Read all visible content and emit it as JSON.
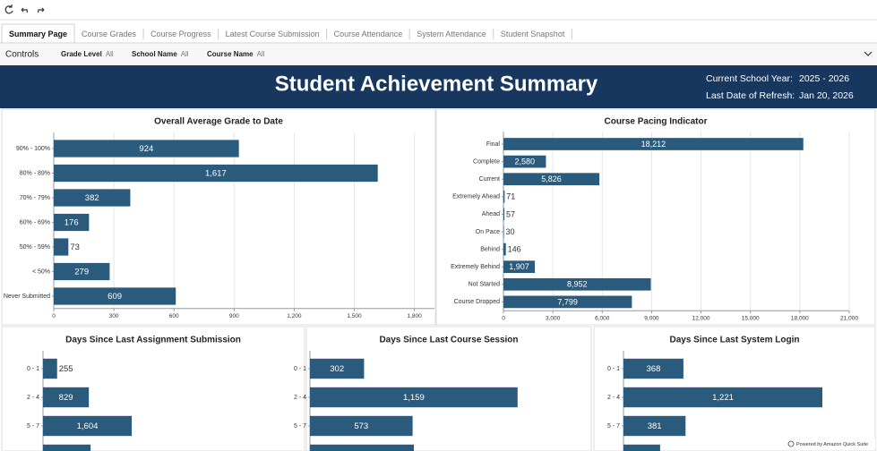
{
  "tabs": [
    "Summary Page",
    "Course Grades",
    "Course Progress",
    "Latest Course Submission",
    "Course Attendance",
    "System Attendance",
    "Student Snapshot"
  ],
  "controls": {
    "title": "Controls",
    "filters": [
      {
        "label": "Grade Level",
        "value": "All"
      },
      {
        "label": "School Name",
        "value": "All"
      },
      {
        "label": "Course Name",
        "value": "All"
      }
    ]
  },
  "header": {
    "title": "Student Achievement Summary",
    "info": [
      {
        "label": "Current School Year:",
        "value": "2025 - 2026"
      },
      {
        "label": "Last Date of Refresh:",
        "value": "Jan 20, 2026"
      }
    ]
  },
  "chart_data": [
    {
      "type": "bar",
      "orientation": "horizontal",
      "title": "Overall Average Grade to Date",
      "categories": [
        "90% - 100%",
        "80% - 89%",
        "70% - 79%",
        "60% - 69%",
        "50% - 59%",
        "< 50%",
        "Never Submitted"
      ],
      "values": [
        924,
        1617,
        382,
        176,
        73,
        279,
        609
      ],
      "value_labels": [
        "924",
        "1,617",
        "382",
        "176",
        "73",
        "279",
        "609"
      ],
      "color": "#2b5b7c",
      "xlim": [
        0,
        1900
      ],
      "xticks": [
        0,
        300,
        600,
        900,
        {
          "value": 1200,
          "label": "1,200"
        },
        {
          "value": 1500,
          "label": "1,500"
        },
        {
          "value": 1800,
          "label": "1,800"
        }
      ],
      "grid": true
    },
    {
      "type": "bar",
      "orientation": "horizontal",
      "title": "Course Pacing Indicator",
      "categories": [
        "Final",
        "Complete",
        "Current",
        "Extremely Ahead",
        "Ahead",
        "On Pace",
        "Behind",
        "Extremely Behind",
        "Not Started",
        "Course Dropped"
      ],
      "values": [
        18212,
        2580,
        5826,
        71,
        57,
        30,
        146,
        1907,
        8952,
        7799
      ],
      "value_labels": [
        "18,212",
        "2,580",
        "5,826",
        "71",
        "57",
        "30",
        "146",
        "1,907",
        "8,952",
        "7,799"
      ],
      "color": "#2b5b7c",
      "xlim": [
        0,
        21000
      ],
      "xticks": [
        0,
        {
          "value": 3000,
          "label": "3,000"
        },
        {
          "value": 6000,
          "label": "6,000"
        },
        {
          "value": 9000,
          "label": "9,000"
        },
        {
          "value": 12000,
          "label": "12,000"
        },
        {
          "value": 15000,
          "label": "15,000"
        },
        {
          "value": 18000,
          "label": "18,000"
        },
        {
          "value": 21000,
          "label": "21,000"
        }
      ],
      "grid": true
    },
    {
      "type": "bar",
      "orientation": "horizontal",
      "title": "Days Since Last Assignment Submission",
      "categories": [
        "0 - 1",
        "2 - 4",
        "5 - 7",
        null
      ],
      "values": [
        255,
        829,
        1604,
        860
      ],
      "value_labels": [
        "255",
        "829",
        "1,604",
        null
      ],
      "color": "#2b5b7c",
      "xlim": [
        0,
        4730
      ]
    },
    {
      "type": "bar",
      "orientation": "horizontal",
      "title": "Days Since Last Course Session",
      "categories": [
        "0 - 1",
        "2 - 4",
        "5 - 7",
        null
      ],
      "values": [
        302,
        1159,
        573,
        580
      ],
      "value_labels": [
        "302",
        "1,159",
        "573",
        null
      ],
      "color": "#2b5b7c",
      "xlim": [
        0,
        1570
      ]
    },
    {
      "type": "bar",
      "orientation": "horizontal",
      "title": "Days Since Last System Login",
      "categories": [
        "0 - 1",
        "2 - 4",
        "5 - 7",
        null
      ],
      "values": [
        368,
        1221,
        381,
        225
      ],
      "value_labels": [
        "368",
        "1,221",
        "381",
        null
      ],
      "color": "#2b5b7c",
      "xlim": [
        0,
        1540
      ]
    }
  ],
  "footer": "Powered by Amazon Quick Suite"
}
